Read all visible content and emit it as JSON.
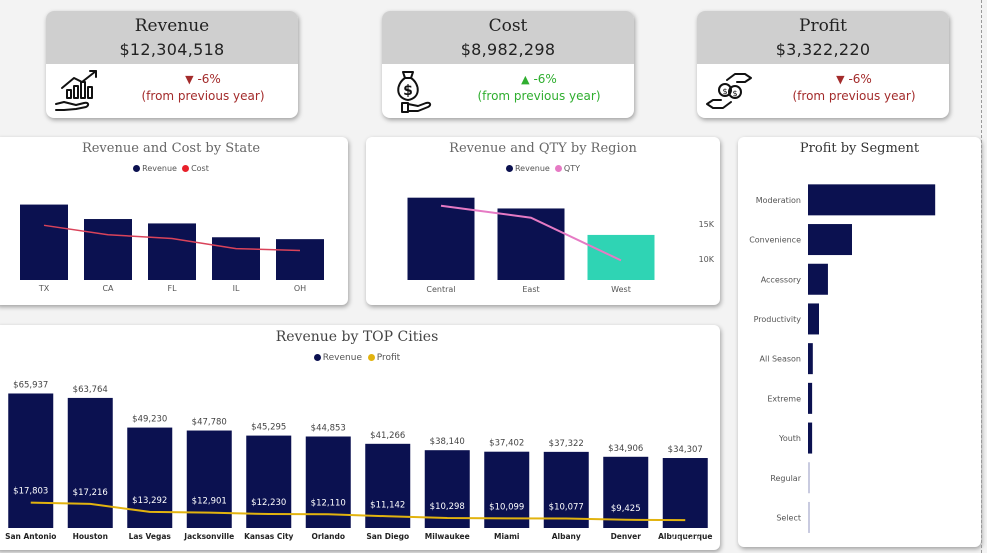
{
  "kpis": [
    {
      "title": "Revenue",
      "value": "$12,304,518",
      "change": "-6%",
      "note": "(from previous year)",
      "direction": "down",
      "icon": "revenue-growth-icon"
    },
    {
      "title": "Cost",
      "value": "$8,982,298",
      "change": "-6%",
      "note": "(from previous year)",
      "direction": "up",
      "icon": "money-bag-hand-icon"
    },
    {
      "title": "Profit",
      "value": "$3,322,220",
      "change": "-6%",
      "note": "(from previous year)",
      "direction": "down",
      "icon": "hand-exchange-money-icon"
    }
  ],
  "colors": {
    "navy": "#0b1150",
    "red": "#e8202a",
    "pink": "#e67ac4",
    "teal": "#2fd4b4",
    "gold": "#e2b30f",
    "green": "#2fae2f",
    "darkred": "#a32b2b"
  },
  "chart_data": [
    {
      "type": "bar",
      "title": "Revenue and Cost by State",
      "legend": [
        "Revenue",
        "Cost"
      ],
      "categories": [
        "TX",
        "CA",
        "FL",
        "IL",
        "OH"
      ],
      "series": [
        {
          "name": "Revenue",
          "type": "bar",
          "values": [
            1200000,
            970000,
            900000,
            680000,
            650000
          ]
        },
        {
          "name": "Cost",
          "type": "line",
          "values": [
            870000,
            720000,
            660000,
            500000,
            470000
          ]
        }
      ],
      "ylim": [
        0,
        1400000
      ]
    },
    {
      "type": "bar",
      "title": "Revenue and QTY by Region",
      "legend": [
        "Revenue",
        "QTY"
      ],
      "categories": [
        "Central",
        "East",
        "West"
      ],
      "series": [
        {
          "name": "Revenue",
          "type": "bar",
          "values": [
            4200000,
            3650000,
            2300000
          ]
        },
        {
          "name": "QTY",
          "type": "line",
          "values": [
            17600,
            15900,
            9800
          ]
        }
      ],
      "ylim": [
        0,
        5000000
      ],
      "y2_ticks": [
        "15K",
        "10K"
      ],
      "y2_tick_values": [
        15000,
        10000
      ],
      "y2lim": [
        7000,
        21000
      ]
    },
    {
      "type": "bar",
      "title": "Profit by Segment",
      "orientation": "horizontal",
      "categories": [
        "Moderation",
        "Convenience",
        "Accessory",
        "Productivity",
        "All Season",
        "Extreme",
        "Youth",
        "Regular",
        "Select"
      ],
      "values": [
        1850000,
        640000,
        290000,
        160000,
        70000,
        60000,
        60000,
        25000,
        20000
      ],
      "xlim": [
        0,
        2400000
      ]
    },
    {
      "type": "bar",
      "title": "Revenue by TOP Cities",
      "legend": [
        "Revenue",
        "Profit"
      ],
      "categories": [
        "San Antonio",
        "Houston",
        "Las Vegas",
        "Jacksonville",
        "Kansas City",
        "Orlando",
        "San Diego",
        "Milwaukee",
        "Miami",
        "Albany",
        "Denver",
        "Albuquerque"
      ],
      "series": [
        {
          "name": "Revenue",
          "type": "bar",
          "values": [
            65937,
            63764,
            49230,
            47780,
            45295,
            44853,
            41266,
            38140,
            37402,
            37322,
            34906,
            34307
          ],
          "labels": [
            "$65,937",
            "$63,764",
            "$49,230",
            "$47,780",
            "$45,295",
            "$44,853",
            "$41,266",
            "$38,140",
            "$37,402",
            "$37,322",
            "$34,906",
            "$34,307"
          ]
        },
        {
          "name": "Profit",
          "type": "line",
          "values": [
            17803,
            17216,
            13292,
            12901,
            12230,
            12110,
            11142,
            10298,
            10099,
            10077,
            9425,
            9263
          ],
          "labels": [
            "$17,803",
            "$17,216",
            "$13,292",
            "$12,901",
            "$12,230",
            "$12,110",
            "$11,142",
            "$10,298",
            "$10,099",
            "$10,077",
            "$9,425",
            "$9,263"
          ]
        }
      ],
      "ylim": [
        0,
        75000
      ]
    }
  ]
}
